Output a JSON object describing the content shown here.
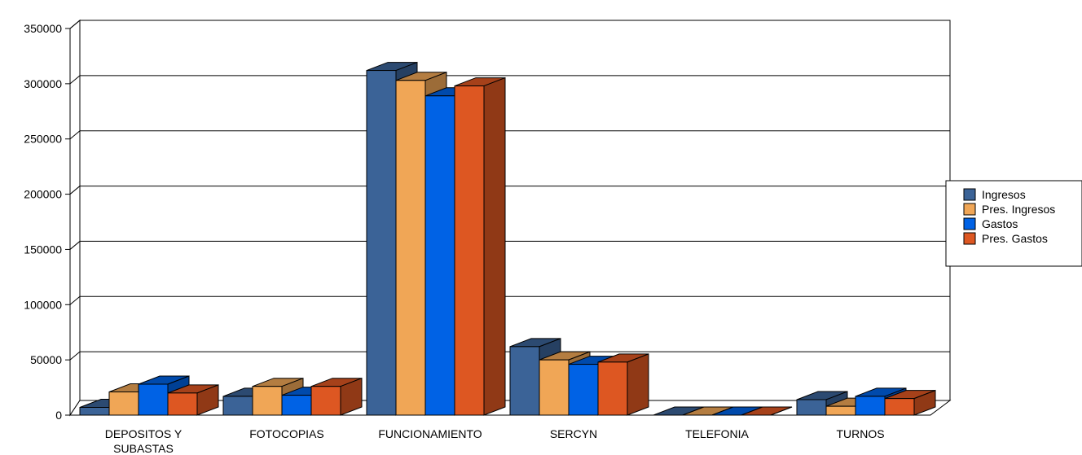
{
  "chart_data": {
    "type": "bar",
    "categories": [
      [
        "DEPOSITOS Y",
        "SUBASTAS"
      ],
      [
        "FOTOCOPIAS"
      ],
      [
        "FUNCIONAMIENTO"
      ],
      [
        "SERCYN"
      ],
      [
        "TELEFONIA"
      ],
      [
        "TURNOS"
      ]
    ],
    "series": [
      {
        "name": "Ingresos",
        "color": "#3b6397",
        "values": [
          7000,
          17000,
          312000,
          62000,
          0,
          14000
        ]
      },
      {
        "name": "Pres. Ingresos",
        "color": "#f0a656",
        "values": [
          21000,
          26000,
          303000,
          50000,
          0,
          8000
        ]
      },
      {
        "name": "Gastos",
        "color": "#0062e5",
        "values": [
          28000,
          18000,
          289000,
          46000,
          0,
          17000
        ]
      },
      {
        "name": "Pres. Gastos",
        "color": "#dd5722",
        "values": [
          20000,
          26000,
          298000,
          48000,
          0,
          15000
        ]
      }
    ],
    "y_ticks": [
      "0",
      "50000",
      "100000",
      "150000",
      "200000",
      "250000",
      "300000",
      "350000"
    ],
    "ylim": [
      0,
      350000
    ],
    "grid": true,
    "style": "3d-bars",
    "legend_position": "right"
  }
}
